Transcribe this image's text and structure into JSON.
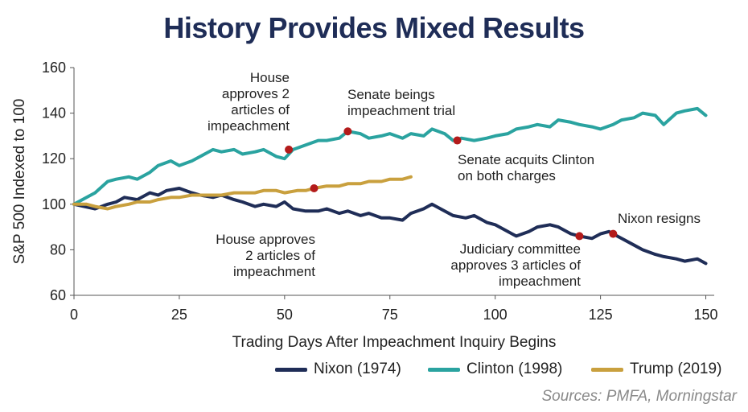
{
  "chart_data": {
    "type": "line",
    "title": "History Provides Mixed Results",
    "xlabel": "Trading Days After Impeachment Inquiry Begins",
    "ylabel": "S&P 500 Indexed to 100",
    "xlim": [
      0,
      152
    ],
    "ylim": [
      60,
      160
    ],
    "xticks": [
      0,
      25,
      50,
      75,
      100,
      125,
      150
    ],
    "yticks": [
      60,
      80,
      100,
      120,
      140,
      160
    ],
    "grid": false,
    "legend_position": "bottom-right",
    "series": [
      {
        "name": "Nixon (1974)",
        "color": "#1f2d57",
        "x": [
          0,
          5,
          8,
          10,
          12,
          15,
          18,
          20,
          22,
          25,
          28,
          30,
          33,
          35,
          38,
          40,
          43,
          45,
          48,
          50,
          52,
          55,
          58,
          60,
          63,
          65,
          68,
          70,
          73,
          75,
          78,
          80,
          83,
          85,
          88,
          90,
          93,
          95,
          98,
          100,
          103,
          105,
          108,
          110,
          113,
          115,
          118,
          120,
          123,
          125,
          127,
          128,
          130,
          133,
          135,
          138,
          140,
          143,
          145,
          148,
          150
        ],
        "values": [
          100,
          98,
          100,
          101,
          103,
          102,
          105,
          104,
          106,
          107,
          105,
          104,
          103,
          104,
          102,
          101,
          99,
          100,
          99,
          101,
          98,
          97,
          97,
          98,
          96,
          97,
          95,
          96,
          94,
          94,
          93,
          96,
          98,
          100,
          97,
          95,
          94,
          95,
          92,
          91,
          88,
          86,
          88,
          90,
          91,
          90,
          87,
          86,
          85,
          87,
          88,
          87,
          85,
          82,
          80,
          78,
          77,
          76,
          75,
          76,
          74
        ]
      },
      {
        "name": "Clinton (1998)",
        "color": "#2aa3a0",
        "x": [
          0,
          3,
          5,
          8,
          10,
          13,
          15,
          18,
          20,
          23,
          25,
          28,
          30,
          33,
          35,
          38,
          40,
          43,
          45,
          48,
          50,
          52,
          55,
          58,
          60,
          63,
          65,
          68,
          70,
          73,
          75,
          78,
          80,
          83,
          85,
          88,
          90,
          92,
          95,
          98,
          100,
          103,
          105,
          108,
          110,
          113,
          115,
          118,
          120,
          123,
          125,
          128,
          130,
          133,
          135,
          138,
          140,
          143,
          145,
          148,
          150
        ],
        "values": [
          100,
          103,
          105,
          110,
          111,
          112,
          111,
          114,
          117,
          119,
          117,
          119,
          121,
          124,
          123,
          124,
          122,
          123,
          124,
          121,
          120,
          124,
          126,
          128,
          128,
          129,
          132,
          131,
          129,
          130,
          131,
          129,
          131,
          130,
          133,
          131,
          128,
          129,
          128,
          129,
          130,
          131,
          133,
          134,
          135,
          134,
          137,
          136,
          135,
          134,
          133,
          135,
          137,
          138,
          140,
          139,
          135,
          140,
          141,
          142,
          139
        ]
      },
      {
        "name": "Trump (2019)",
        "color": "#c9a03e",
        "x": [
          0,
          3,
          5,
          8,
          10,
          13,
          15,
          18,
          20,
          23,
          25,
          28,
          30,
          33,
          35,
          38,
          40,
          43,
          45,
          48,
          50,
          53,
          55,
          57,
          60,
          63,
          65,
          68,
          70,
          73,
          75,
          78,
          80
        ],
        "values": [
          100,
          100,
          99,
          98,
          99,
          100,
          101,
          101,
          102,
          103,
          103,
          104,
          104,
          104,
          104,
          105,
          105,
          105,
          106,
          106,
          105,
          106,
          106,
          107,
          108,
          108,
          109,
          109,
          110,
          110,
          111,
          111,
          112
        ]
      }
    ],
    "markers": [
      {
        "series": "Clinton (1998)",
        "x": 51,
        "y": 124
      },
      {
        "series": "Clinton (1998)",
        "x": 65,
        "y": 132
      },
      {
        "series": "Clinton (1998)",
        "x": 91,
        "y": 128
      },
      {
        "series": "Trump (2019)",
        "x": 57,
        "y": 107
      },
      {
        "series": "Nixon (1974)",
        "x": 120,
        "y": 86
      },
      {
        "series": "Nixon (1974)",
        "x": 128,
        "y": 87
      }
    ],
    "annotations": [
      {
        "id": "house-clinton",
        "lines": [
          "House",
          "approves 2",
          "articles of",
          "impeachment"
        ]
      },
      {
        "id": "senate-trial",
        "lines": [
          "Senate beings",
          "impeachment trial"
        ]
      },
      {
        "id": "senate-acquits",
        "lines": [
          "Senate acquits Clinton",
          "on both charges"
        ]
      },
      {
        "id": "house-trump",
        "lines": [
          "House approves",
          "2 articles of",
          "impeachment"
        ]
      },
      {
        "id": "judiciary",
        "lines": [
          "Judiciary committee",
          "approves 3 articles of",
          "impeachment"
        ]
      },
      {
        "id": "nixon-resigns",
        "lines": [
          "Nixon resigns"
        ]
      }
    ],
    "marker_color": "#b31b1b"
  },
  "source": "Sources: PMFA, Morningstar"
}
